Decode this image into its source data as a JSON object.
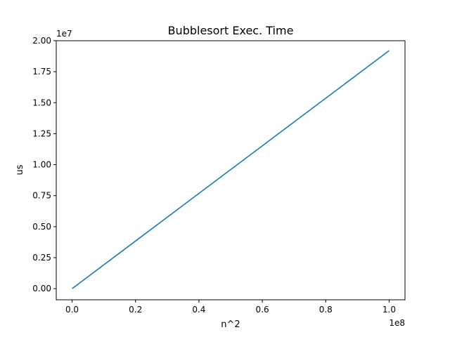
{
  "chart_data": {
    "type": "line",
    "title": "Bubblesort Exec. Time",
    "xlabel": "n^2",
    "ylabel": "us",
    "x_offset_label": "1e8",
    "y_offset_label": "1e7",
    "xlim": [
      -0.05,
      1.05
    ],
    "ylim": [
      -0.09,
      2.0
    ],
    "x_ticks": [
      0.0,
      0.2,
      0.4,
      0.6,
      0.8,
      1.0
    ],
    "x_tick_labels": [
      "0.0",
      "0.2",
      "0.4",
      "0.6",
      "0.8",
      "1.0"
    ],
    "y_ticks": [
      0.0,
      0.25,
      0.5,
      0.75,
      1.0,
      1.25,
      1.5,
      1.75,
      2.0
    ],
    "y_tick_labels": [
      "0.00",
      "0.25",
      "0.50",
      "0.75",
      "1.00",
      "1.25",
      "1.50",
      "1.75",
      "2.00"
    ],
    "grid": false,
    "series": [
      {
        "color": "#1f77b4",
        "x": [
          0.0,
          0.2,
          0.4,
          0.6,
          0.8,
          1.0
        ],
        "y": [
          0.0,
          0.384,
          0.768,
          1.152,
          1.536,
          1.92
        ]
      }
    ]
  }
}
